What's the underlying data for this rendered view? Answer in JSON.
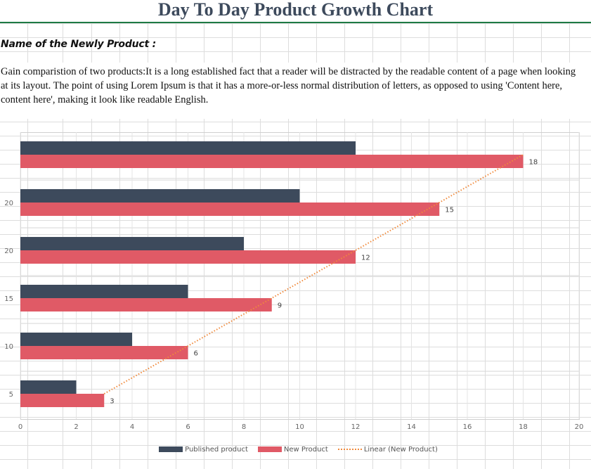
{
  "header": {
    "title": "Day To Day Product Growth Chart",
    "subtitle": "Name of the Newly Product :",
    "description": "Gain comparistion of two products:It is a long established fact that a reader will be distracted by the readable content of a page when looking at its layout. The point of using Lorem Ipsum is that it has a more-or-less normal distribution of letters, as opposed to using 'Content here, content here', making it look like readable English."
  },
  "colors": {
    "published": "#3d4a5c",
    "new_product": "#e05a66",
    "trendline": "#f08a3c",
    "title_rule": "#1e7a45",
    "grid": "#dddddd"
  },
  "chart_data": {
    "type": "bar",
    "orientation": "horizontal",
    "categories": [
      "",
      "20",
      "20",
      "15",
      "10",
      "5"
    ],
    "series": [
      {
        "name": "Published product",
        "values": [
          12,
          10,
          8,
          6,
          4,
          2
        ]
      },
      {
        "name": "New Product",
        "values": [
          18,
          15,
          12,
          9,
          6,
          3
        ],
        "data_labels": [
          "18",
          "15",
          "12",
          "9",
          "6",
          "3"
        ]
      }
    ],
    "trendline": {
      "name": "Linear (New Product)",
      "series": "New Product",
      "style": "dotted"
    },
    "xlim": [
      0,
      20
    ],
    "xticks": [
      "0",
      "2",
      "4",
      "6",
      "8",
      "10",
      "12",
      "14",
      "16",
      "18",
      "20"
    ],
    "title": "",
    "xlabel": "",
    "ylabel": "",
    "grid": true,
    "legend_position": "bottom"
  },
  "legend": {
    "items": [
      {
        "label": "Published product"
      },
      {
        "label": "New Product"
      },
      {
        "label": "Linear (New Product)"
      }
    ]
  }
}
